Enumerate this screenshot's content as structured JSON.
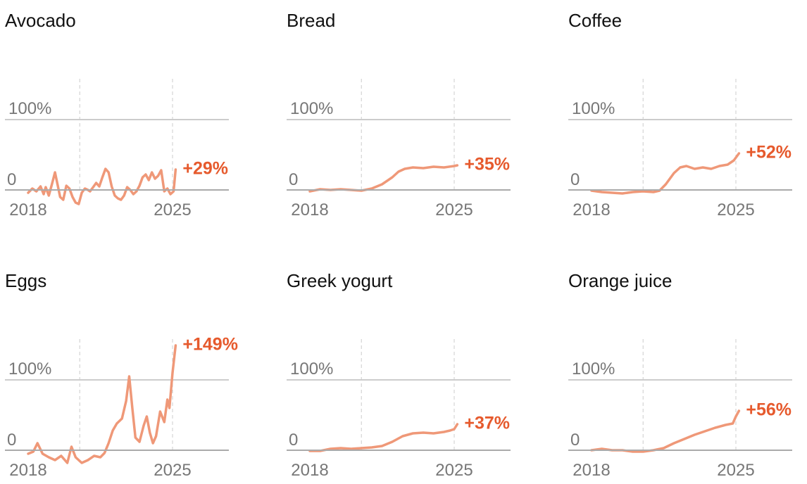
{
  "style": {
    "line_color": "#ef9878",
    "label_color": "#e65a2d",
    "grid_color": "#cccccc",
    "baseline_color": "#aaaaaa",
    "year_line_color": "#cccccc",
    "tick_color": "#777777"
  },
  "chart_data": [
    {
      "type": "line",
      "title": "Avocado",
      "x_ticks": [
        "2018",
        "2025"
      ],
      "y_ticks": [
        "0",
        "100%"
      ],
      "ylim": [
        -30,
        150
      ],
      "xlim": [
        2018,
        2027.8
      ],
      "grid": true,
      "end_label": "+29%",
      "x": [
        2018.0,
        2018.2,
        2018.4,
        2018.6,
        2018.75,
        2018.85,
        2019.0,
        2019.15,
        2019.3,
        2019.45,
        2019.55,
        2019.7,
        2019.85,
        2020.0,
        2020.15,
        2020.3,
        2020.45,
        2020.6,
        2020.75,
        2020.9,
        2021.0,
        2021.15,
        2021.3,
        2021.45,
        2021.6,
        2021.75,
        2021.9,
        2022.05,
        2022.2,
        2022.35,
        2022.5,
        2022.65,
        2022.8,
        2022.95,
        2023.1,
        2023.25,
        2023.4,
        2023.55,
        2023.7,
        2023.85,
        2024.0,
        2024.15,
        2024.3,
        2024.45,
        2024.6,
        2024.75,
        2024.9,
        2025.05,
        2025.15
      ],
      "y": [
        -4,
        2,
        -2,
        5,
        -6,
        4,
        -8,
        8,
        25,
        4,
        -10,
        -14,
        6,
        2,
        -10,
        -18,
        -20,
        -4,
        2,
        0,
        -2,
        4,
        10,
        5,
        18,
        30,
        25,
        5,
        -8,
        -12,
        -14,
        -8,
        4,
        0,
        -6,
        -2,
        6,
        18,
        22,
        14,
        25,
        16,
        20,
        28,
        -2,
        2,
        -6,
        -2,
        29
      ]
    },
    {
      "type": "line",
      "title": "Bread",
      "x_ticks": [
        "2018",
        "2025"
      ],
      "y_ticks": [
        "0",
        "100%"
      ],
      "ylim": [
        -30,
        150
      ],
      "xlim": [
        2018,
        2027.8
      ],
      "grid": true,
      "end_label": "+35%",
      "x": [
        2018.0,
        2018.5,
        2019.0,
        2019.5,
        2020.0,
        2020.5,
        2021.0,
        2021.5,
        2022.0,
        2022.3,
        2022.6,
        2023.0,
        2023.5,
        2024.0,
        2024.5,
        2025.0,
        2025.15
      ],
      "y": [
        -2,
        1,
        0,
        1,
        0,
        -1,
        2,
        8,
        18,
        26,
        30,
        32,
        31,
        33,
        32,
        34,
        35
      ]
    },
    {
      "type": "line",
      "title": "Coffee",
      "x_ticks": [
        "2018",
        "2025"
      ],
      "y_ticks": [
        "0",
        "100%"
      ],
      "ylim": [
        -30,
        150
      ],
      "xlim": [
        2018,
        2027.8
      ],
      "grid": true,
      "end_label": "+52%",
      "x": [
        2018.0,
        2018.5,
        2019.0,
        2019.5,
        2020.0,
        2020.5,
        2021.0,
        2021.3,
        2021.6,
        2022.0,
        2022.3,
        2022.6,
        2023.0,
        2023.4,
        2023.8,
        2024.2,
        2024.6,
        2024.9,
        2025.15
      ],
      "y": [
        -1,
        -3,
        -4,
        -5,
        -3,
        -2,
        -3,
        -1,
        8,
        24,
        32,
        34,
        30,
        32,
        30,
        34,
        36,
        42,
        52
      ]
    },
    {
      "type": "line",
      "title": "Eggs",
      "x_ticks": [
        "2018",
        "2025"
      ],
      "y_ticks": [
        "0",
        "100%"
      ],
      "ylim": [
        -30,
        150
      ],
      "xlim": [
        2018,
        2027.8
      ],
      "grid": true,
      "end_label": "+149%",
      "x": [
        2018.0,
        2018.25,
        2018.45,
        2018.7,
        2019.0,
        2019.3,
        2019.6,
        2019.9,
        2020.1,
        2020.3,
        2020.6,
        2020.9,
        2021.2,
        2021.5,
        2021.7,
        2021.9,
        2022.1,
        2022.3,
        2022.55,
        2022.75,
        2022.9,
        2023.05,
        2023.2,
        2023.4,
        2023.6,
        2023.75,
        2023.9,
        2024.05,
        2024.2,
        2024.4,
        2024.6,
        2024.75,
        2024.85,
        2025.0,
        2025.15
      ],
      "y": [
        -5,
        -2,
        10,
        -5,
        -10,
        -14,
        -8,
        -18,
        5,
        -10,
        -18,
        -14,
        -8,
        -10,
        -4,
        10,
        28,
        38,
        45,
        70,
        105,
        60,
        18,
        12,
        35,
        48,
        25,
        10,
        20,
        55,
        40,
        72,
        60,
        110,
        149
      ]
    },
    {
      "type": "line",
      "title": "Greek yogurt",
      "x_ticks": [
        "2018",
        "2025"
      ],
      "y_ticks": [
        "0",
        "100%"
      ],
      "ylim": [
        -30,
        150
      ],
      "xlim": [
        2018,
        2027.8
      ],
      "grid": true,
      "end_label": "+37%",
      "x": [
        2018.0,
        2018.5,
        2019.0,
        2019.5,
        2020.0,
        2020.5,
        2021.0,
        2021.5,
        2022.0,
        2022.5,
        2023.0,
        2023.5,
        2024.0,
        2024.5,
        2024.8,
        2025.0,
        2025.15
      ],
      "y": [
        -1,
        -1,
        2,
        3,
        2,
        3,
        4,
        6,
        12,
        20,
        24,
        25,
        24,
        26,
        28,
        30,
        37
      ]
    },
    {
      "type": "line",
      "title": "Orange juice",
      "x_ticks": [
        "2018",
        "2025"
      ],
      "y_ticks": [
        "0",
        "100%"
      ],
      "ylim": [
        -30,
        150
      ],
      "xlim": [
        2018,
        2027.8
      ],
      "grid": true,
      "end_label": "+56%",
      "x": [
        2018.0,
        2018.5,
        2019.0,
        2019.5,
        2020.0,
        2020.5,
        2021.0,
        2021.5,
        2022.0,
        2022.5,
        2023.0,
        2023.5,
        2024.0,
        2024.5,
        2024.85,
        2025.0,
        2025.15
      ],
      "y": [
        0,
        2,
        0,
        0,
        -2,
        -2,
        0,
        3,
        10,
        16,
        22,
        27,
        32,
        36,
        38,
        48,
        56
      ]
    }
  ]
}
